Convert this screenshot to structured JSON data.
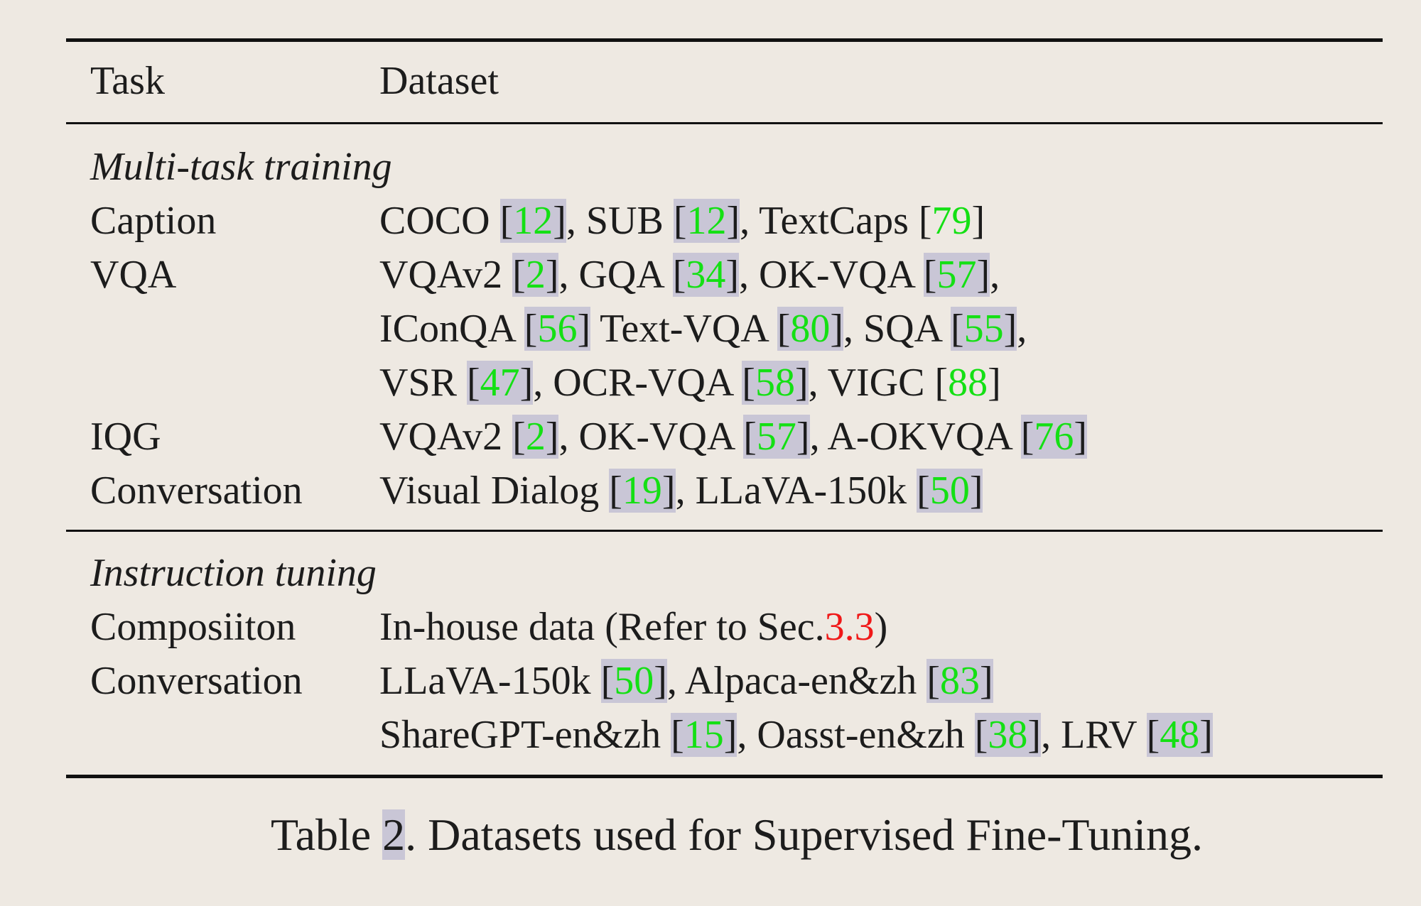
{
  "header": {
    "task": "Task",
    "dataset": "Dataset"
  },
  "sections": [
    {
      "title": "Multi-task training",
      "rows": [
        {
          "task": "Caption",
          "lines": [
            [
              {
                "t": "COCO "
              },
              {
                "r": "12"
              },
              {
                "t": ", SUB "
              },
              {
                "r": "12"
              },
              {
                "t": ", TextCaps "
              },
              {
                "p": "79"
              }
            ]
          ]
        },
        {
          "task": "VQA",
          "lines": [
            [
              {
                "t": "VQAv2 "
              },
              {
                "r": "2"
              },
              {
                "t": ", GQA "
              },
              {
                "r": "34"
              },
              {
                "t": ", OK-VQA "
              },
              {
                "r": "57"
              },
              {
                "t": ","
              }
            ],
            [
              {
                "t": "IConQA "
              },
              {
                "r": "56"
              },
              {
                "t": " Text-VQA "
              },
              {
                "r": "80"
              },
              {
                "t": ", SQA "
              },
              {
                "r": "55"
              },
              {
                "t": ","
              }
            ],
            [
              {
                "t": "VSR "
              },
              {
                "r": "47"
              },
              {
                "t": ", OCR-VQA "
              },
              {
                "r": "58"
              },
              {
                "t": ", VIGC "
              },
              {
                "p": "88"
              }
            ]
          ]
        },
        {
          "task": "IQG",
          "lines": [
            [
              {
                "t": "VQAv2 "
              },
              {
                "r": "2"
              },
              {
                "t": ", OK-VQA "
              },
              {
                "r": "57"
              },
              {
                "t": ", A-OKVQA "
              },
              {
                "r": "76"
              }
            ]
          ]
        },
        {
          "task": "Conversation",
          "lines": [
            [
              {
                "t": "Visual Dialog "
              },
              {
                "r": "19"
              },
              {
                "t": ", LLaVA-150k "
              },
              {
                "r": "50"
              }
            ]
          ]
        }
      ]
    },
    {
      "title": "Instruction tuning",
      "rows": [
        {
          "task": "Composiiton",
          "lines": [
            [
              {
                "t": "In-house data (Refer to Sec."
              },
              {
                "s": "3.3"
              },
              {
                "t": ")"
              }
            ]
          ]
        },
        {
          "task": "Conversation",
          "lines": [
            [
              {
                "t": "LLaVA-150k "
              },
              {
                "r": "50"
              },
              {
                "t": ", Alpaca-en&zh "
              },
              {
                "r": "83"
              }
            ],
            [
              {
                "t": "ShareGPT-en&zh  "
              },
              {
                "r": "15"
              },
              {
                "t": ", Oasst-en&zh  "
              },
              {
                "r": "38"
              },
              {
                "t": ", LRV "
              },
              {
                "r": "48"
              }
            ]
          ]
        }
      ]
    }
  ],
  "caption": {
    "prefix": "Table ",
    "number": "2",
    "text": ". Datasets used for Supervised Fine-Tuning."
  }
}
